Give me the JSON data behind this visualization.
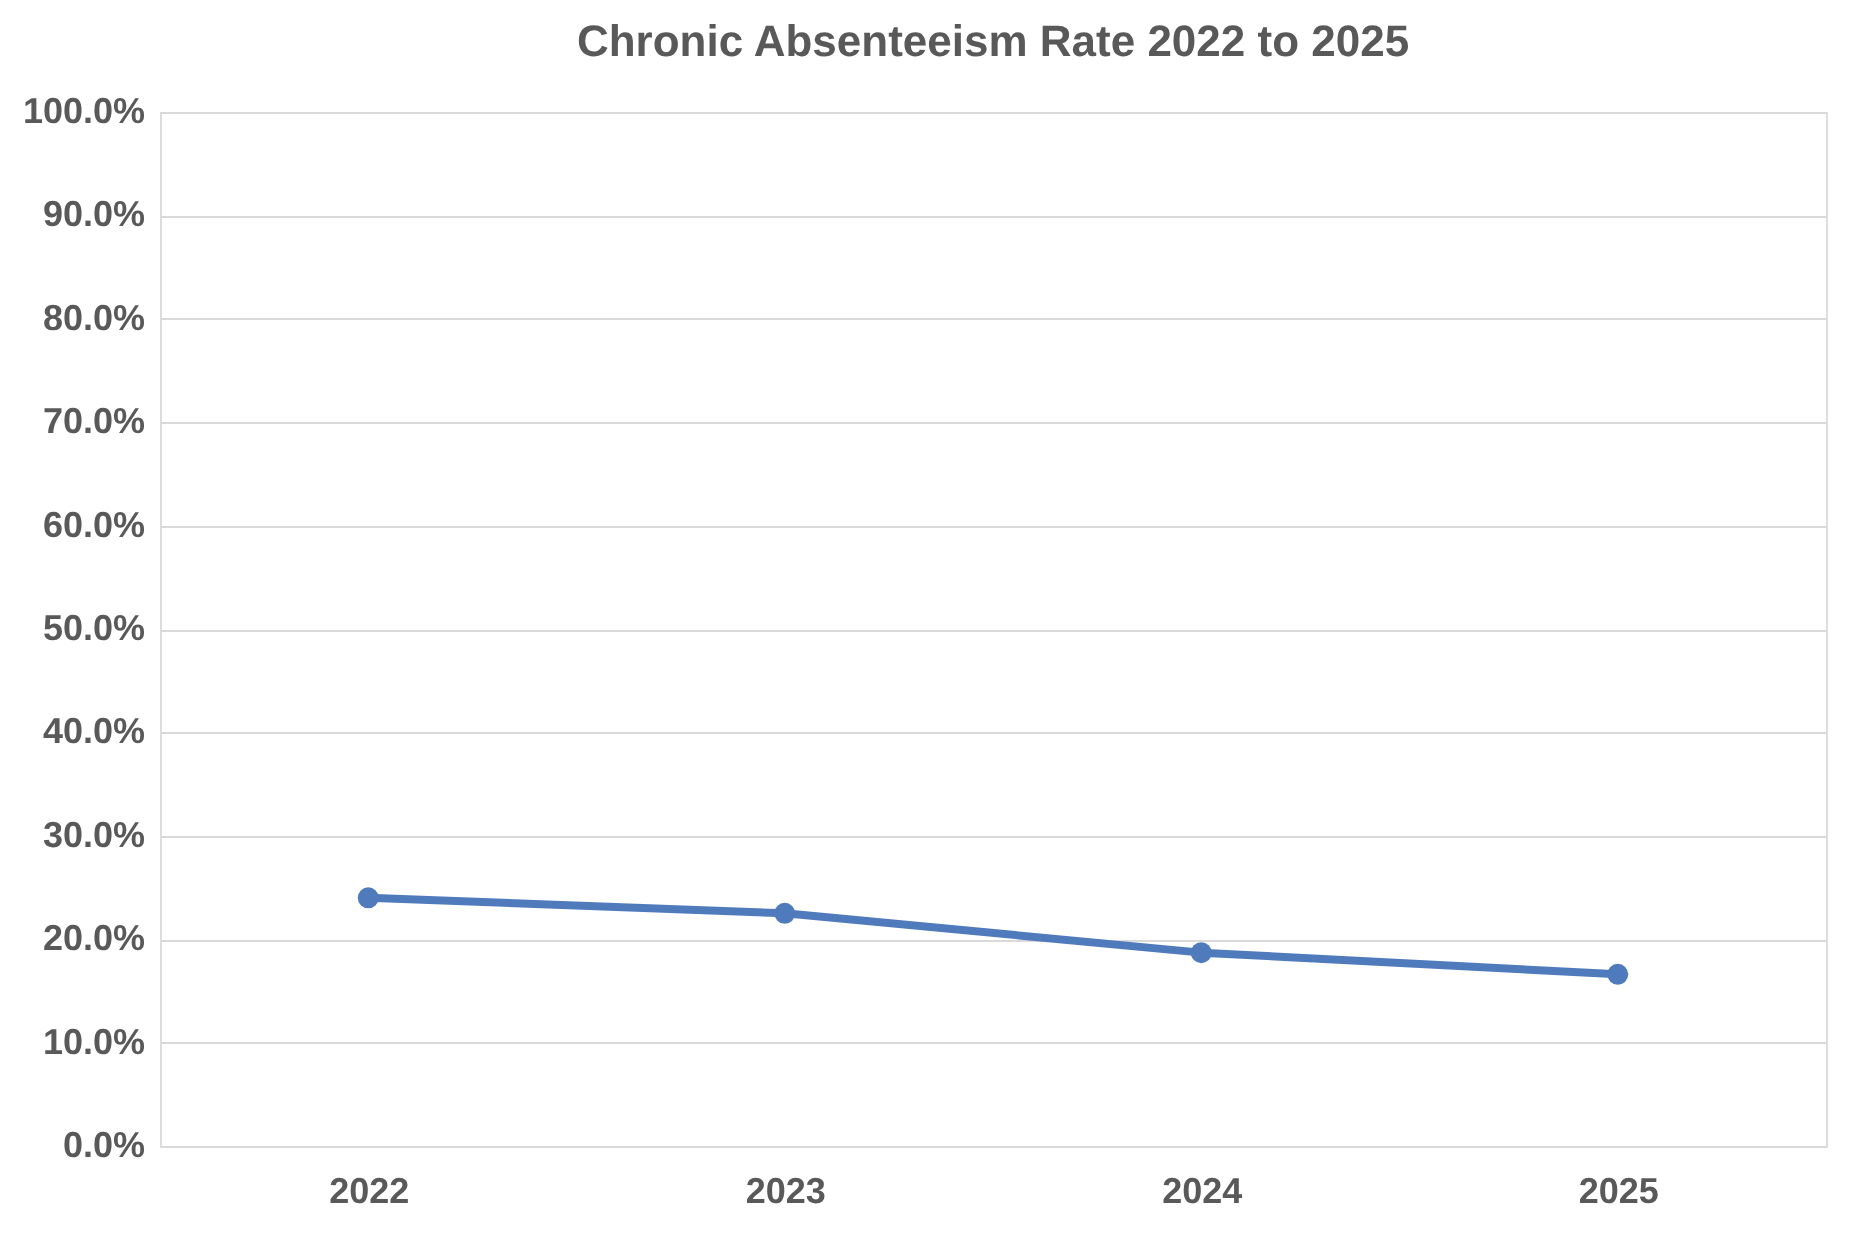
{
  "chart_data": {
    "type": "line",
    "title": "Chronic Absenteeism Rate 2022 to 2025",
    "categories": [
      "2022",
      "2023",
      "2024",
      "2025"
    ],
    "series": [
      {
        "color": "#4f7bbd",
        "values": [
          24.0,
          22.5,
          18.7,
          16.6
        ]
      }
    ],
    "ylim": [
      0,
      100
    ],
    "yticks": [
      {
        "value": 0,
        "label": "0.0%"
      },
      {
        "value": 10,
        "label": "10.0%"
      },
      {
        "value": 20,
        "label": "20.0%"
      },
      {
        "value": 30,
        "label": "30.0%"
      },
      {
        "value": 40,
        "label": "40.0%"
      },
      {
        "value": 50,
        "label": "50.0%"
      },
      {
        "value": 60,
        "label": "60.0%"
      },
      {
        "value": 70,
        "label": "70.0%"
      },
      {
        "value": 80,
        "label": "80.0%"
      },
      {
        "value": 90,
        "label": "90.0%"
      },
      {
        "value": 100,
        "label": "100.0%"
      }
    ],
    "grid": "y",
    "marker": "circle",
    "line_style": "solid"
  }
}
